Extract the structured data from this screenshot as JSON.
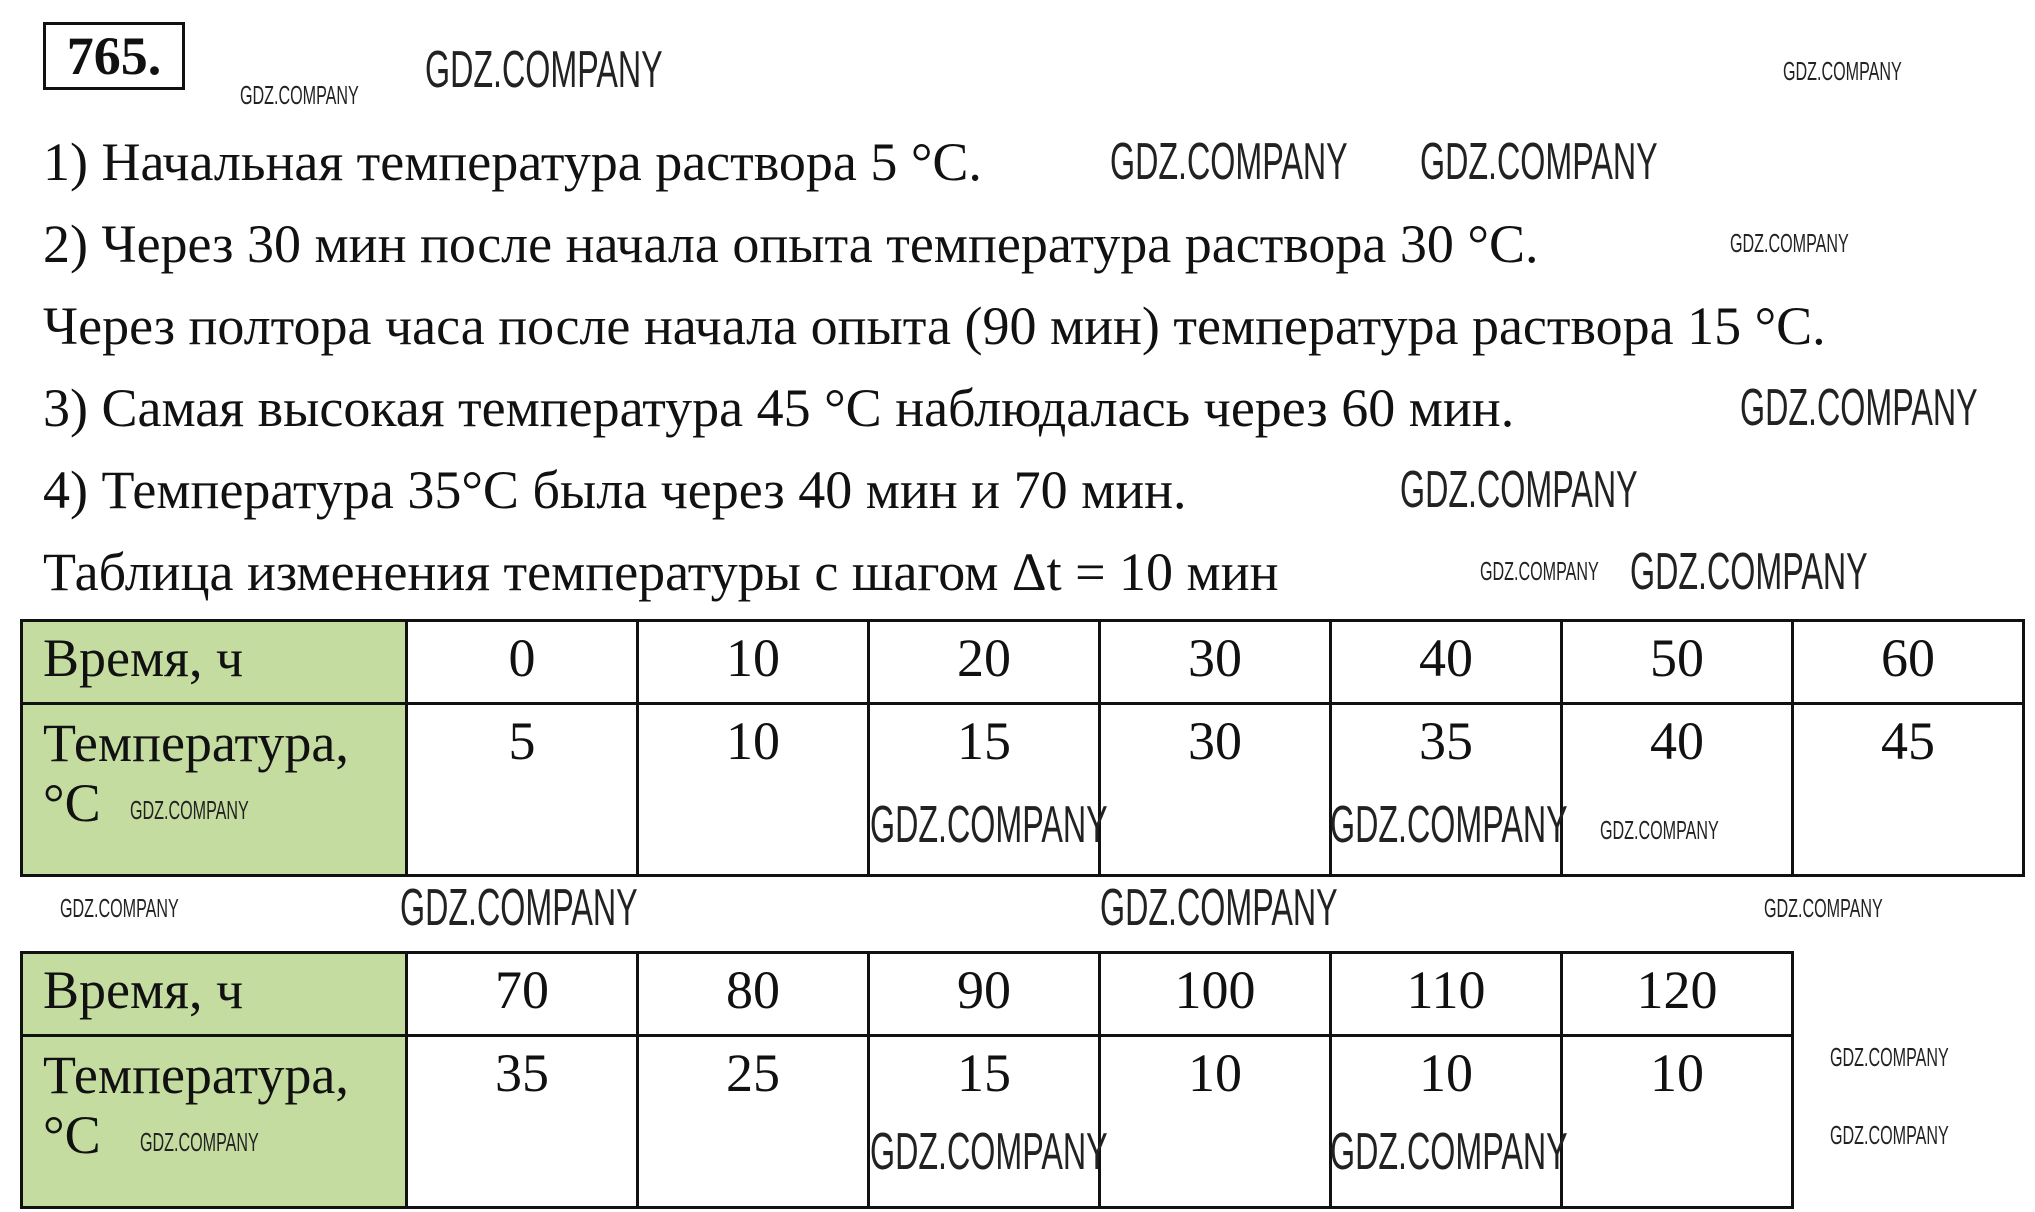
{
  "exercise_number": "765.",
  "lines": [
    "1) Начальная температура раствора 5 °C.",
    "2) Через 30 мин после начала опыта температура раствора 30 °C.",
    "Через полтора часа после начала опыта (90 мин) температура раствора 15 °C.",
    "3) Самая высокая температура 45 °C наблюдалась через 60 мин.",
    "4) Температура 35°C была через 40 мин и 70 мин.",
    "Таблица изменения температуры с шагом Δt = 10 мин"
  ],
  "tables": [
    {
      "row_headers": [
        "Время, ч",
        "Температура, °C"
      ],
      "time": [
        "0",
        "10",
        "20",
        "30",
        "40",
        "50",
        "60"
      ],
      "temperature": [
        "5",
        "10",
        "15",
        "30",
        "35",
        "40",
        "45"
      ]
    },
    {
      "row_headers": [
        "Время, ч",
        "Температура, °C"
      ],
      "time": [
        "70",
        "80",
        "90",
        "100",
        "110",
        "120"
      ],
      "temperature": [
        "35",
        "25",
        "15",
        "10",
        "10",
        "10"
      ]
    }
  ],
  "watermark": "GDZ.COMPANY",
  "colors": {
    "header_fill": "#c4dca0"
  }
}
